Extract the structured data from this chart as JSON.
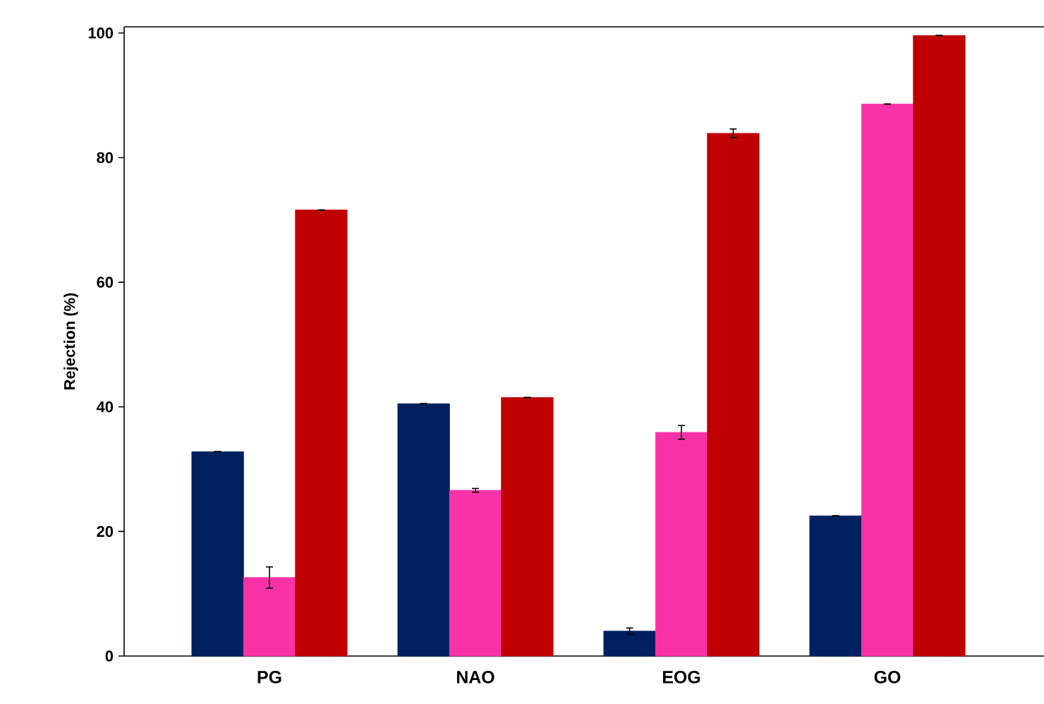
{
  "chart_data": {
    "type": "bar",
    "ylabel": "Rejection (%)",
    "categories": [
      "PG",
      "NAO",
      "EOG",
      "GO"
    ],
    "series": [
      {
        "color": "#002060",
        "values": [
          32.8,
          40.5,
          4.0,
          22.5
        ],
        "errors": [
          null,
          null,
          0.5,
          null
        ]
      },
      {
        "color": "#f932a8",
        "values": [
          12.6,
          26.6,
          35.9,
          88.6
        ],
        "errors": [
          1.7,
          0.3,
          1.1,
          null
        ]
      },
      {
        "color": "#c00000",
        "values": [
          71.6,
          41.5,
          83.9,
          99.6
        ],
        "errors": [
          null,
          null,
          0.7,
          null
        ]
      }
    ],
    "ylim": [
      0,
      101
    ],
    "yticks": [
      0,
      20,
      40,
      60,
      80,
      100
    ],
    "grid": false
  }
}
